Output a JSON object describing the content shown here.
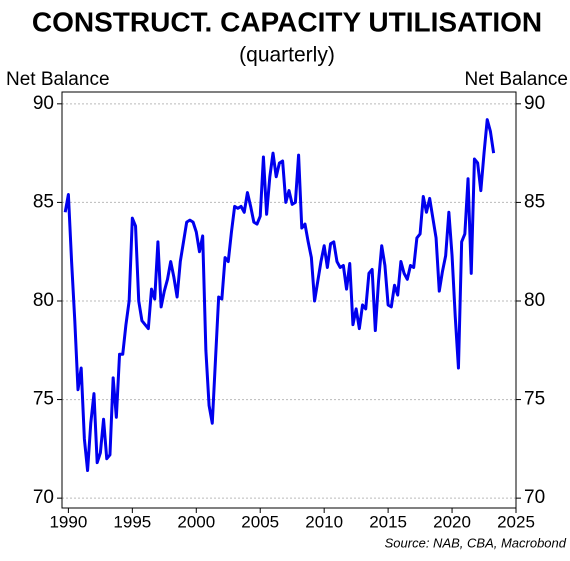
{
  "chart_data": {
    "type": "line",
    "title": "CONSTRUCT. CAPACITY UTILISATION",
    "subtitle": "(quarterly)",
    "ylabel": "Net Balance",
    "y2label": "Net Balance",
    "source": "Source: NAB, CBA, Macrobond",
    "x": [
      1989.75,
      1990.0,
      1990.25,
      1990.5,
      1990.75,
      1991.0,
      1991.25,
      1991.5,
      1991.75,
      1992.0,
      1992.25,
      1992.5,
      1992.75,
      1993.0,
      1993.25,
      1993.5,
      1993.75,
      1994.0,
      1994.25,
      1994.5,
      1994.75,
      1995.0,
      1995.25,
      1995.5,
      1995.75,
      1996.0,
      1996.25,
      1996.5,
      1996.75,
      1997.0,
      1997.25,
      1997.5,
      1997.75,
      1998.0,
      1998.25,
      1998.5,
      1998.75,
      1999.0,
      1999.25,
      1999.5,
      1999.75,
      2000.0,
      2000.25,
      2000.5,
      2000.75,
      2001.0,
      2001.25,
      2001.5,
      2001.75,
      2002.0,
      2002.25,
      2002.5,
      2002.75,
      2003.0,
      2003.25,
      2003.5,
      2003.75,
      2004.0,
      2004.25,
      2004.5,
      2004.75,
      2005.0,
      2005.25,
      2005.5,
      2005.75,
      2006.0,
      2006.25,
      2006.5,
      2006.75,
      2007.0,
      2007.25,
      2007.5,
      2007.75,
      2008.0,
      2008.25,
      2008.5,
      2008.75,
      2009.0,
      2009.25,
      2009.5,
      2009.75,
      2010.0,
      2010.25,
      2010.5,
      2010.75,
      2011.0,
      2011.25,
      2011.5,
      2011.75,
      2012.0,
      2012.25,
      2012.5,
      2012.75,
      2013.0,
      2013.25,
      2013.5,
      2013.75,
      2014.0,
      2014.25,
      2014.5,
      2014.75,
      2015.0,
      2015.25,
      2015.5,
      2015.75,
      2016.0,
      2016.25,
      2016.5,
      2016.75,
      2017.0,
      2017.25,
      2017.5,
      2017.75,
      2018.0,
      2018.25,
      2018.5,
      2018.75,
      2019.0,
      2019.25,
      2019.5,
      2019.75,
      2020.0,
      2020.25,
      2020.5,
      2020.75,
      2021.0,
      2021.25,
      2021.5,
      2021.75,
      2022.0,
      2022.25,
      2022.5,
      2022.75,
      2023.0,
      2023.25
    ],
    "series": [
      {
        "name": "Capacity utilisation",
        "color": "#0000ee",
        "values": [
          84.5,
          85.4,
          82,
          79,
          75.5,
          76.6,
          73,
          71.4,
          73.8,
          75.3,
          71.8,
          72.3,
          74,
          72,
          72.2,
          76.1,
          74.1,
          77.3,
          77.3,
          78.8,
          80,
          84.2,
          83.8,
          80,
          79,
          78.8,
          78.6,
          80.6,
          80.1,
          83,
          79.7,
          80.5,
          81.1,
          82,
          81.2,
          80.2,
          82,
          83,
          84,
          84.1,
          84,
          83.5,
          82.5,
          83.3,
          77.5,
          74.7,
          73.8,
          77,
          80.2,
          80.1,
          82.2,
          82,
          83.5,
          84.8,
          84.7,
          84.8,
          84.5,
          85.5,
          84.8,
          84,
          83.9,
          84.3,
          87.3,
          84.4,
          86.3,
          87.5,
          86.3,
          87,
          87.1,
          85,
          85.6,
          84.9,
          85,
          87.4,
          83.7,
          83.9,
          83,
          82.2,
          80,
          81,
          82,
          82.8,
          81.7,
          82.9,
          83,
          82,
          81.7,
          81.8,
          80.6,
          81.9,
          78.8,
          79.6,
          78.6,
          79.8,
          79.6,
          81.4,
          81.6,
          78.5,
          81,
          82.8,
          81.8,
          79.8,
          79.7,
          80.8,
          80.3,
          82,
          81.4,
          81.1,
          81.8,
          81.7,
          83.2,
          83.4,
          85.3,
          84.5,
          85.2,
          84.2,
          83.2,
          80.5,
          81.5,
          82.3,
          84.5,
          82.3,
          79.2,
          76.6,
          83,
          83.4,
          86.2,
          81.4,
          87.2,
          87,
          85.6,
          87.5,
          89.2,
          88.6,
          87.5
        ]
      }
    ],
    "xlim": [
      1989.5,
      2025
    ],
    "xticks": [
      1990,
      1995,
      2000,
      2005,
      2010,
      2015,
      2020,
      2025
    ],
    "ylim": [
      69.5,
      90.6
    ],
    "yticks": [
      70,
      75,
      80,
      85,
      90
    ],
    "y2lim": [
      69.5,
      90.6
    ],
    "y2ticks": [
      70,
      75,
      80,
      85,
      90
    ],
    "grid": true
  }
}
